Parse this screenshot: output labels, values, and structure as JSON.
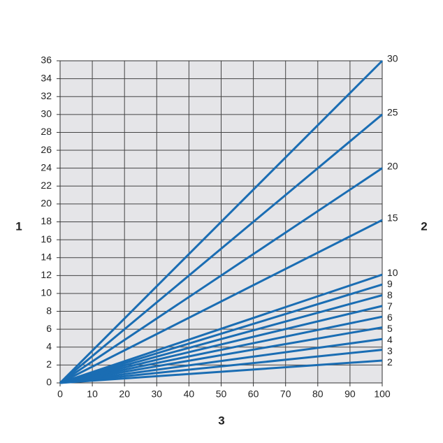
{
  "chart_data": {
    "type": "line",
    "x_label": "3",
    "y_label": "1",
    "y2_label": "2",
    "x": [
      0,
      100
    ],
    "series": [
      {
        "name": "30",
        "color": "#1a6db3",
        "values": [
          0,
          36
        ]
      },
      {
        "name": "25",
        "color": "#1a6db3",
        "values": [
          0,
          30
        ]
      },
      {
        "name": "20",
        "color": "#1a6db3",
        "values": [
          0,
          24
        ]
      },
      {
        "name": "15",
        "color": "#1a6db3",
        "values": [
          0,
          18.2
        ]
      },
      {
        "name": "10",
        "color": "#1a6db3",
        "values": [
          0,
          12.1
        ]
      },
      {
        "name": "9",
        "color": "#1a6db3",
        "values": [
          0,
          11
        ]
      },
      {
        "name": "8",
        "color": "#1a6db3",
        "values": [
          0,
          9.8
        ]
      },
      {
        "name": "7",
        "color": "#1a6db3",
        "values": [
          0,
          8.6
        ]
      },
      {
        "name": "6",
        "color": "#1a6db3",
        "values": [
          0,
          7.4
        ]
      },
      {
        "name": "5",
        "color": "#1a6db3",
        "values": [
          0,
          6.2
        ]
      },
      {
        "name": "4",
        "color": "#1a6db3",
        "values": [
          0,
          4.9
        ]
      },
      {
        "name": "3",
        "color": "#1a6db3",
        "values": [
          0,
          3.7
        ]
      },
      {
        "name": "2",
        "color": "#1a6db3",
        "values": [
          0,
          2.5
        ]
      }
    ],
    "xlim": [
      0,
      100
    ],
    "xticks": [
      0,
      10,
      20,
      30,
      40,
      50,
      60,
      70,
      80,
      90,
      100
    ],
    "ylim": [
      0,
      36
    ],
    "yticks": [
      0,
      2,
      4,
      6,
      8,
      10,
      12,
      14,
      16,
      18,
      20,
      22,
      24,
      26,
      28,
      30,
      32,
      34,
      36
    ],
    "grid": true
  }
}
